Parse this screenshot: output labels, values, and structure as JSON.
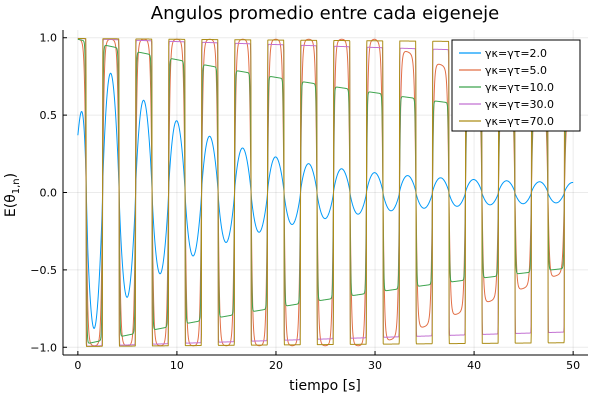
{
  "chart_data": {
    "type": "line",
    "title": "Angulos promedio entre cada eigeneje",
    "xlabel": "tiempo [s]",
    "ylabel_main": "E(θ",
    "ylabel_sub": "1,n",
    "ylabel_close": ")",
    "xlim": [
      -1.5,
      51.5
    ],
    "ylim": [
      -1.05,
      1.05
    ],
    "xticks": [
      0,
      10,
      20,
      30,
      40,
      50
    ],
    "xtick_labels": [
      "0",
      "10",
      "20",
      "30",
      "40",
      "50"
    ],
    "yticks": [
      -1.0,
      -0.5,
      0.0,
      0.5,
      1.0
    ],
    "ytick_labels": [
      "−1.0",
      "−0.5",
      "0.0",
      "0.5",
      "1.0"
    ],
    "grid": true,
    "legend_position": "top-right",
    "oscillation_period": 3.33,
    "series": [
      {
        "name": "γκ=γτ=2.0",
        "gamma_k": "2.0",
        "color": "#009af9",
        "start": 0.37
      },
      {
        "name": "γκ=γτ=5.0",
        "gamma_k": "5.0",
        "color": "#e26f46",
        "start": 0.98
      },
      {
        "name": "γκ=γτ=10.0",
        "gamma_k": "10.0",
        "color": "#3da44d",
        "start": 0.99
      },
      {
        "name": "γκ=γτ=30.0",
        "gamma_k": "30.0",
        "color": "#c271d2",
        "start": 1.0
      },
      {
        "name": "γκ=γτ=70.0",
        "gamma_k": "70.0",
        "color": "#ac8d18",
        "start": 1.0
      }
    ]
  }
}
